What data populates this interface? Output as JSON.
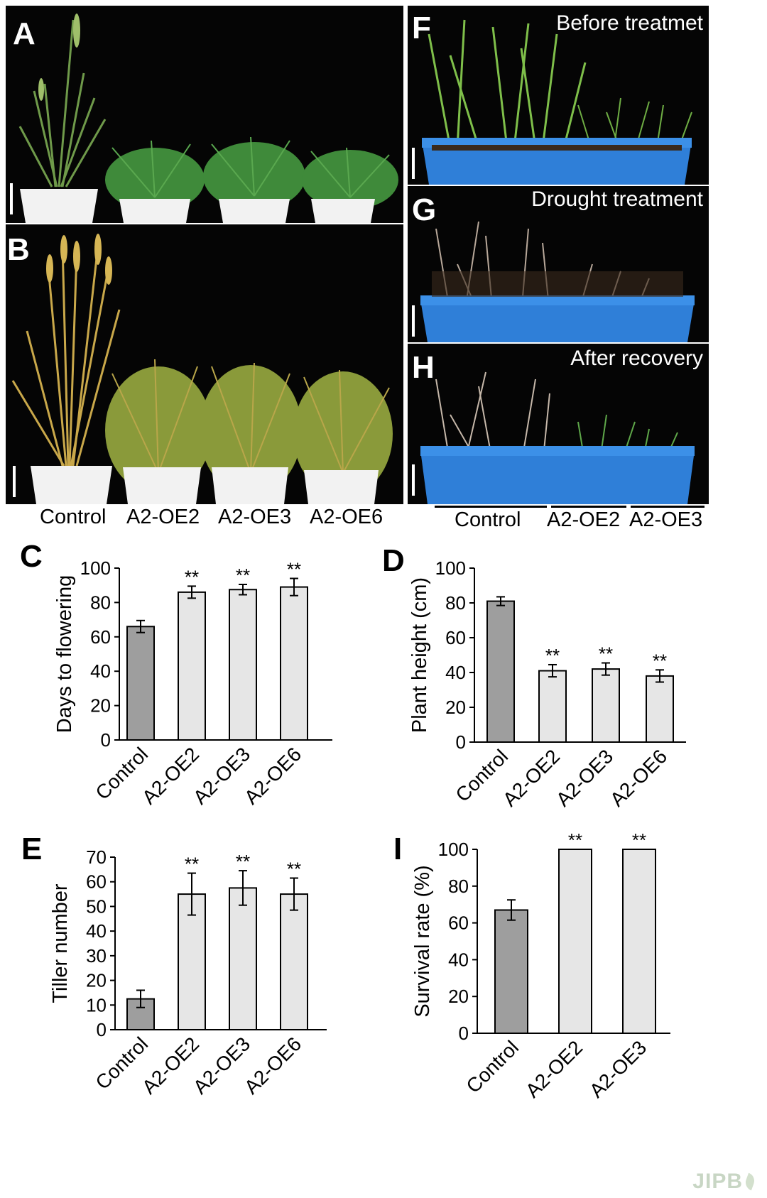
{
  "panels": {
    "A": {
      "letter": "A"
    },
    "B": {
      "letter": "B"
    },
    "C": {
      "letter": "C"
    },
    "D": {
      "letter": "D"
    },
    "E": {
      "letter": "E"
    },
    "F": {
      "letter": "F",
      "caption": "Before treatmet"
    },
    "G": {
      "letter": "G",
      "caption": "Drought treatment"
    },
    "H": {
      "letter": "H",
      "caption": "After recovery"
    },
    "I": {
      "letter": "I"
    }
  },
  "photo_labels_left": [
    "Control",
    "A2-OE2",
    "A2-OE3",
    "A2-OE6"
  ],
  "photo_labels_right": [
    "Control",
    "A2-OE2",
    "A2-OE3"
  ],
  "watermark": "JIPB",
  "colors": {
    "control_bar": "#9e9e9e",
    "transgenic_bar": "#e6e6e6",
    "tray": "#2f7fd8",
    "photo_bg": "#050505"
  },
  "chart_data": [
    {
      "id": "C",
      "type": "bar",
      "title": "",
      "categories": [
        "Control",
        "A2-OE2",
        "A2-OE3",
        "A2-OE6"
      ],
      "values": [
        66,
        86,
        87.5,
        89
      ],
      "errors": [
        3.5,
        3.5,
        3,
        5
      ],
      "significance": [
        "",
        "**",
        "**",
        "**"
      ],
      "xlabel": "",
      "ylabel": "Days to flowering",
      "ylim": [
        0,
        100
      ],
      "yticks": [
        "0",
        "20",
        "40",
        "60",
        "80",
        "100"
      ]
    },
    {
      "id": "D",
      "type": "bar",
      "title": "",
      "categories": [
        "Control",
        "A2-OE2",
        "A2-OE3",
        "A2-OE6"
      ],
      "values": [
        81,
        41,
        42,
        38
      ],
      "errors": [
        2.5,
        3.5,
        3.5,
        3.5
      ],
      "significance": [
        "",
        "**",
        "**",
        "**"
      ],
      "xlabel": "",
      "ylabel": "Plant height (cm)",
      "ylim": [
        0,
        100
      ],
      "yticks": [
        "0",
        "20",
        "40",
        "60",
        "80",
        "100"
      ]
    },
    {
      "id": "E",
      "type": "bar",
      "title": "",
      "categories": [
        "Control",
        "A2-OE2",
        "A2-OE3",
        "A2-OE6"
      ],
      "values": [
        12.5,
        55,
        57.5,
        55
      ],
      "errors": [
        3.5,
        8.5,
        7,
        6.5
      ],
      "significance": [
        "",
        "**",
        "**",
        "**"
      ],
      "xlabel": "",
      "ylabel": "Tiller number",
      "ylim": [
        0,
        70
      ],
      "yticks": [
        "0",
        "10",
        "20",
        "30",
        "40",
        "50",
        "60",
        "70"
      ]
    },
    {
      "id": "I",
      "type": "bar",
      "title": "",
      "categories": [
        "Control",
        "A2-OE2",
        "A2-OE3"
      ],
      "values": [
        67,
        100,
        100
      ],
      "errors": [
        5.5,
        0,
        0
      ],
      "significance": [
        "",
        "**",
        "**"
      ],
      "xlabel": "",
      "ylabel": "Survival rate (%)",
      "ylim": [
        0,
        100
      ],
      "yticks": [
        "0",
        "20",
        "40",
        "60",
        "80",
        "100"
      ]
    }
  ]
}
